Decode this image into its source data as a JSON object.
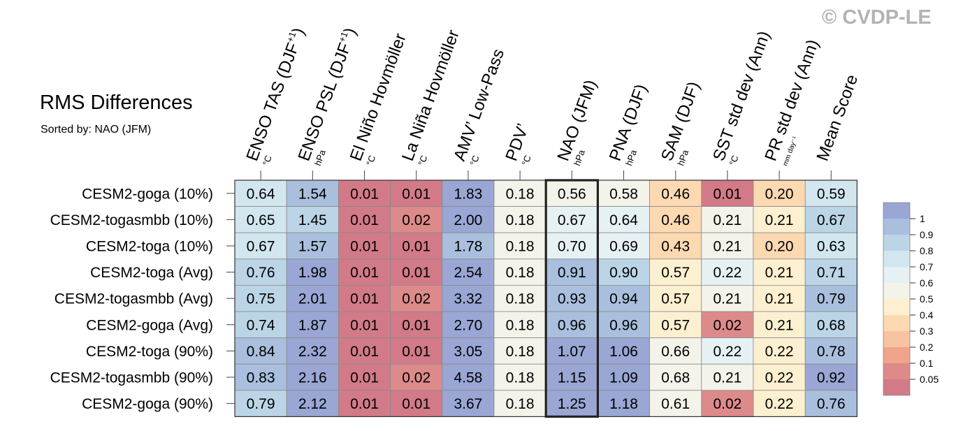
{
  "title": "RMS Differences",
  "subtitle": "Sorted by: NAO (JFM)",
  "watermark": "© CVDP-LE",
  "highlight_column": 6,
  "chart_data": {
    "type": "heatmap",
    "title": "RMS Differences",
    "subtitle": "Sorted by: NAO (JFM)",
    "columns": [
      {
        "label": "ENSO TAS (DJF",
        "sup": "+1",
        "close": ")",
        "unit": "°C"
      },
      {
        "label": "ENSO PSL (DJF",
        "sup": "+1",
        "close": ")",
        "unit": "hPa"
      },
      {
        "label": "El Niño Hovmöller",
        "sup": "",
        "close": "",
        "unit": "°C"
      },
      {
        "label": "La Niña Hovmöller",
        "sup": "",
        "close": "",
        "unit": "°C"
      },
      {
        "label": "AMV’ Low-Pass",
        "sup": "",
        "close": "",
        "unit": "°C"
      },
      {
        "label": "PDV’",
        "sup": "",
        "close": "",
        "unit": "°C"
      },
      {
        "label": "NAO (JFM)",
        "sup": "",
        "close": "",
        "unit": "hPa"
      },
      {
        "label": "PNA (DJF)",
        "sup": "",
        "close": "",
        "unit": "hPa"
      },
      {
        "label": "SAM (DJF)",
        "sup": "",
        "close": "",
        "unit": "hPa"
      },
      {
        "label": "SST std dev (Ann)",
        "sup": "",
        "close": "",
        "unit": "°C"
      },
      {
        "label": "PR std dev (Ann)",
        "sup": "",
        "close": "",
        "unit": "mm day⁻¹"
      },
      {
        "label": "Mean Score",
        "sup": "",
        "close": "",
        "unit": ""
      }
    ],
    "rows": [
      "CESM2-goga (10%)",
      "CESM2-togasmbb (10%)",
      "CESM2-toga (10%)",
      "CESM2-toga (Avg)",
      "CESM2-togasmbb (Avg)",
      "CESM2-goga (Avg)",
      "CESM2-toga (90%)",
      "CESM2-togasmbb (90%)",
      "CESM2-goga (90%)"
    ],
    "values": [
      [
        "0.64",
        "1.54",
        "0.01",
        "0.01",
        "1.83",
        "0.18",
        "0.56",
        "0.58",
        "0.46",
        "0.01",
        "0.20",
        "0.59"
      ],
      [
        "0.65",
        "1.45",
        "0.01",
        "0.02",
        "2.00",
        "0.18",
        "0.67",
        "0.64",
        "0.46",
        "0.21",
        "0.21",
        "0.67"
      ],
      [
        "0.67",
        "1.57",
        "0.01",
        "0.01",
        "1.78",
        "0.18",
        "0.70",
        "0.69",
        "0.43",
        "0.21",
        "0.20",
        "0.63"
      ],
      [
        "0.76",
        "1.98",
        "0.01",
        "0.01",
        "2.54",
        "0.18",
        "0.91",
        "0.90",
        "0.57",
        "0.22",
        "0.21",
        "0.71"
      ],
      [
        "0.75",
        "2.01",
        "0.01",
        "0.02",
        "3.32",
        "0.18",
        "0.93",
        "0.94",
        "0.57",
        "0.21",
        "0.21",
        "0.79"
      ],
      [
        "0.74",
        "1.87",
        "0.01",
        "0.01",
        "2.70",
        "0.18",
        "0.96",
        "0.96",
        "0.57",
        "0.02",
        "0.21",
        "0.68"
      ],
      [
        "0.84",
        "2.32",
        "0.01",
        "0.01",
        "3.05",
        "0.18",
        "1.07",
        "1.06",
        "0.66",
        "0.22",
        "0.22",
        "0.78"
      ],
      [
        "0.83",
        "2.16",
        "0.01",
        "0.02",
        "4.58",
        "0.18",
        "1.15",
        "1.09",
        "0.68",
        "0.21",
        "0.22",
        "0.92"
      ],
      [
        "0.79",
        "2.12",
        "0.01",
        "0.01",
        "3.67",
        "0.18",
        "1.25",
        "1.18",
        "0.61",
        "0.02",
        "0.22",
        "0.76"
      ]
    ],
    "colorbar": {
      "levels": [
        "1",
        "0.9",
        "0.8",
        "0.7",
        "0.6",
        "0.5",
        "0.4",
        "0.3",
        "0.2",
        "0.1",
        "0.05"
      ],
      "colors": [
        "#9aa6d4",
        "#a9bfdd",
        "#bbd5e6",
        "#d2e6ef",
        "#e6f1f4",
        "#f3f3ea",
        "#fdf0d0",
        "#fdd9b2",
        "#f8c3a0",
        "#f0a48b",
        "#dd8a8a",
        "#d27a88"
      ]
    }
  }
}
